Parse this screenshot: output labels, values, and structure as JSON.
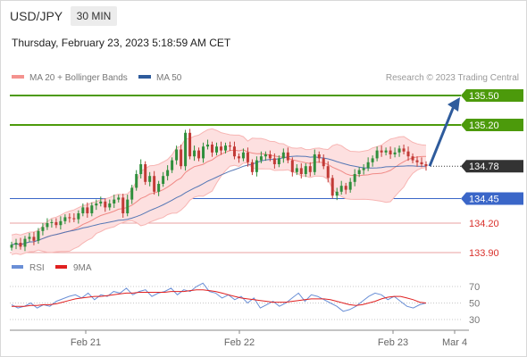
{
  "header": {
    "symbol": "USD/JPY",
    "timeframe": "30 MIN",
    "timestamp": "Thursday, February 23, 2023 5:18:59 AM CET"
  },
  "legend": {
    "items": [
      {
        "label": "MA 20 + Bollinger Bands",
        "color": "#f4928e"
      },
      {
        "label": "MA 50",
        "color": "#2e5b9c"
      }
    ],
    "credit": "Research © 2023 Trading Central"
  },
  "colors": {
    "resistance": "#4c9a0b",
    "support": "#3a66c8",
    "support_weak": "#e8a0a0",
    "support_label_text": "#d9302b",
    "current_label_bg": "#333333",
    "up_candle": "#2f8f3c",
    "down_candle": "#c23a36",
    "bollinger_fill": "#fde0e0",
    "bollinger_line": "#f7b5b3",
    "ma20": "#f08a86",
    "ma50": "#5577b5",
    "rsi": "#6a8fd6",
    "rsi_ma": "#e02020",
    "arrow": "#2e5b9c"
  },
  "chart_data": {
    "type": "candlestick",
    "instrument": "USD/JPY",
    "x_ticks": [
      "Feb 21",
      "Feb 22",
      "Feb 23",
      "Mar 4"
    ],
    "y_range": [
      133.8,
      135.6
    ],
    "levels": [
      {
        "value": 135.5,
        "label": "135.50",
        "kind": "resistance"
      },
      {
        "value": 135.2,
        "label": "135.20",
        "kind": "resistance"
      },
      {
        "value": 134.78,
        "label": "134.78",
        "kind": "current"
      },
      {
        "value": 134.45,
        "label": "134.45",
        "kind": "support"
      },
      {
        "value": 134.2,
        "label": "134.20",
        "kind": "support-weak"
      },
      {
        "value": 133.9,
        "label": "133.90",
        "kind": "support-weak"
      }
    ],
    "projection": {
      "from": 134.78,
      "to": 135.5
    },
    "close_series": [
      133.98,
      134.0,
      133.96,
      134.04,
      134.06,
      134.02,
      134.12,
      134.16,
      134.2,
      134.21,
      134.18,
      134.22,
      134.26,
      134.25,
      134.24,
      134.3,
      134.36,
      134.3,
      134.38,
      134.4,
      134.42,
      134.36,
      134.4,
      134.44,
      134.46,
      134.3,
      134.44,
      134.56,
      134.7,
      134.8,
      134.62,
      134.68,
      134.52,
      134.6,
      134.68,
      134.74,
      134.84,
      134.95,
      134.78,
      135.12,
      134.88,
      134.94,
      134.86,
      134.98,
      135.0,
      134.92,
      134.98,
      134.94,
      134.99,
      134.98,
      134.88,
      134.86,
      134.92,
      134.82,
      134.72,
      134.84,
      134.88,
      134.9,
      134.86,
      134.8,
      134.86,
      134.92,
      134.84,
      134.72,
      134.76,
      134.7,
      134.78,
      134.72,
      134.9,
      134.86,
      134.78,
      134.66,
      134.48,
      134.52,
      134.58,
      134.54,
      134.62,
      134.7,
      134.74,
      134.76,
      134.82,
      134.86,
      134.94,
      134.92,
      134.94,
      134.9,
      134.92,
      134.96,
      134.93,
      134.88,
      134.84,
      134.82,
      134.8,
      134.78
    ],
    "rsi": {
      "levels": [
        70,
        50,
        30
      ],
      "y_range": [
        20,
        80
      ],
      "series": [
        {
          "name": "RSI",
          "values": [
            48,
            44,
            46,
            50,
            44,
            48,
            46,
            52,
            55,
            58,
            60,
            56,
            62,
            54,
            60,
            58,
            64,
            62,
            68,
            60,
            64,
            66,
            58,
            62,
            64,
            68,
            60,
            66,
            64,
            70,
            74,
            64,
            62,
            56,
            60,
            54,
            58,
            50,
            56,
            44,
            48,
            52,
            46,
            50,
            56,
            62,
            52,
            60,
            58,
            54,
            50,
            46,
            40,
            42,
            46,
            52,
            58,
            62,
            60,
            54,
            58,
            52,
            46,
            44,
            48,
            50
          ]
        },
        {
          "name": "9MA",
          "values": [
            46,
            46,
            46,
            47,
            47,
            48,
            48,
            49,
            51,
            53,
            55,
            56,
            57,
            58,
            58,
            59,
            60,
            61,
            62,
            62,
            63,
            63,
            63,
            63,
            63,
            64,
            64,
            64,
            65,
            66,
            66,
            65,
            64,
            62,
            60,
            58,
            56,
            55,
            54,
            53,
            52,
            51,
            51,
            51,
            52,
            53,
            54,
            55,
            55,
            55,
            54,
            52,
            50,
            48,
            47,
            48,
            50,
            52,
            55,
            57,
            58,
            58,
            56,
            54,
            51,
            50
          ]
        }
      ]
    }
  },
  "rsi_legend": {
    "items": [
      {
        "label": "RSI",
        "color": "#6a8fd6"
      },
      {
        "label": "9MA",
        "color": "#e02020"
      }
    ]
  }
}
